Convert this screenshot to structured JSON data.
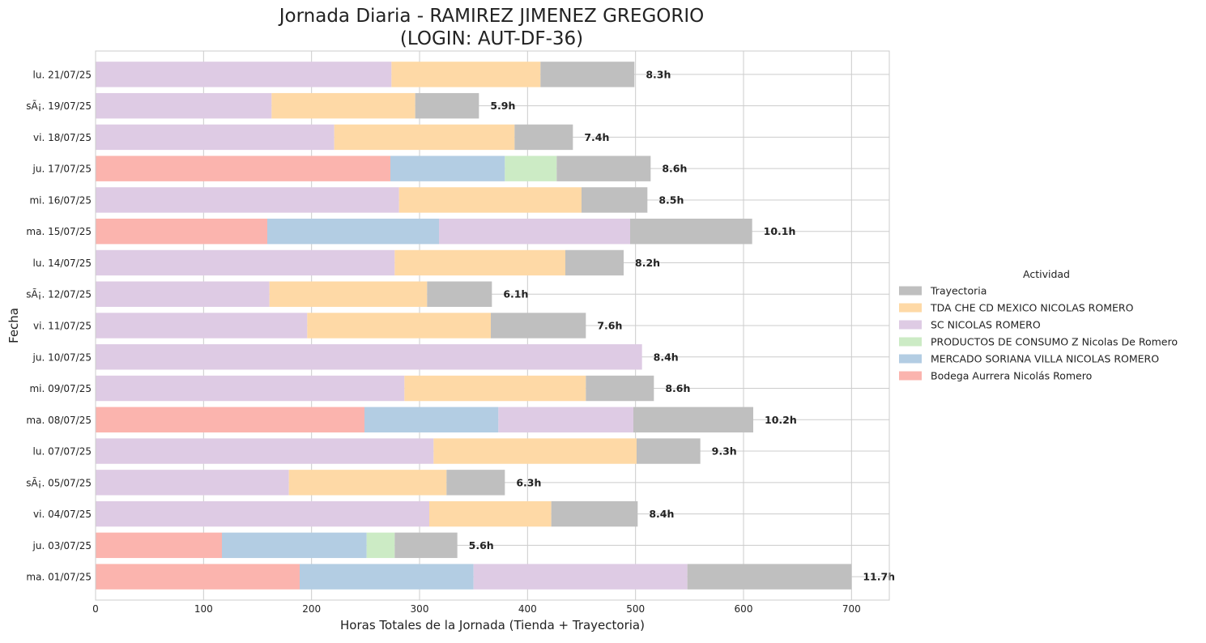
{
  "chart_data": {
    "type": "bar",
    "orientation": "horizontal",
    "stacked": true,
    "title": [
      "Jornada Diaria - RAMIREZ JIMENEZ GREGORIO",
      "(LOGIN: AUT-DF-36)"
    ],
    "xlabel": "Horas Totales de la Jornada (Tienda + Trayectoria)",
    "ylabel": "Fecha",
    "xlim": [
      0,
      735
    ],
    "xticks": [
      0,
      100,
      200,
      300,
      400,
      500,
      600,
      700
    ],
    "grid": true,
    "legend_title": "Actividad",
    "legend_position": "right",
    "categories": [
      "lu. 21/07/25",
      "sÃ¡. 19/07/25",
      "vi. 18/07/25",
      "ju. 17/07/25",
      "mi. 16/07/25",
      "ma. 15/07/25",
      "lu. 14/07/25",
      "sÃ¡. 12/07/25",
      "vi. 11/07/25",
      "ju. 10/07/25",
      "mi. 09/07/25",
      "ma. 08/07/25",
      "lu. 07/07/25",
      "sÃ¡. 05/07/25",
      "vi. 04/07/25",
      "ju. 03/07/25",
      "ma. 01/07/25"
    ],
    "totals": [
      "8.3h",
      "5.9h",
      "7.4h",
      "8.6h",
      "8.5h",
      "10.1h",
      "8.2h",
      "6.1h",
      "7.6h",
      "8.4h",
      "8.6h",
      "10.2h",
      "9.3h",
      "6.3h",
      "8.4h",
      "5.6h",
      "11.7h"
    ],
    "series": [
      {
        "name": "Bodega Aurrera Nicolás Romero",
        "color": "#fbb4ae",
        "values": [
          0,
          0,
          0,
          273,
          0,
          159,
          0,
          0,
          0,
          0,
          0,
          249,
          0,
          0,
          0,
          117,
          189
        ]
      },
      {
        "name": "MERCADO SORIANA VILLA NICOLAS ROMERO",
        "color": "#b3cde3",
        "values": [
          0,
          0,
          0,
          106,
          0,
          159,
          0,
          0,
          0,
          0,
          0,
          124,
          0,
          0,
          0,
          134,
          161
        ]
      },
      {
        "name": "PRODUCTOS DE CONSUMO Z Nicolas De Romero",
        "color": "#ccebc5",
        "values": [
          0,
          0,
          0,
          48,
          0,
          0,
          0,
          0,
          0,
          0,
          0,
          0,
          0,
          0,
          0,
          26,
          0
        ]
      },
      {
        "name": "SC NICOLAS ROMERO",
        "color": "#decbe4",
        "values": [
          274,
          163,
          221,
          0,
          281,
          177,
          277,
          161,
          196,
          506,
          286,
          125,
          313,
          179,
          309,
          0,
          198
        ]
      },
      {
        "name": "TDA CHE CD MEXICO NICOLAS ROMERO",
        "color": "#fed9a6",
        "values": [
          138,
          133,
          167,
          0,
          169,
          0,
          158,
          146,
          170,
          0,
          168,
          0,
          188,
          146,
          113,
          0,
          0
        ]
      },
      {
        "name": "Trayectoria",
        "color": "#bfbfbf",
        "values": [
          87,
          59,
          54,
          87,
          61,
          113,
          54,
          60,
          88,
          0,
          63,
          111,
          59,
          54,
          80,
          58,
          152
        ]
      }
    ],
    "legend_order": [
      "Trayectoria",
      "TDA CHE CD MEXICO NICOLAS ROMERO",
      "SC NICOLAS ROMERO",
      "PRODUCTOS DE CONSUMO Z Nicolas De Romero",
      "MERCADO SORIANA VILLA NICOLAS ROMERO",
      "Bodega Aurrera Nicolás Romero"
    ]
  }
}
